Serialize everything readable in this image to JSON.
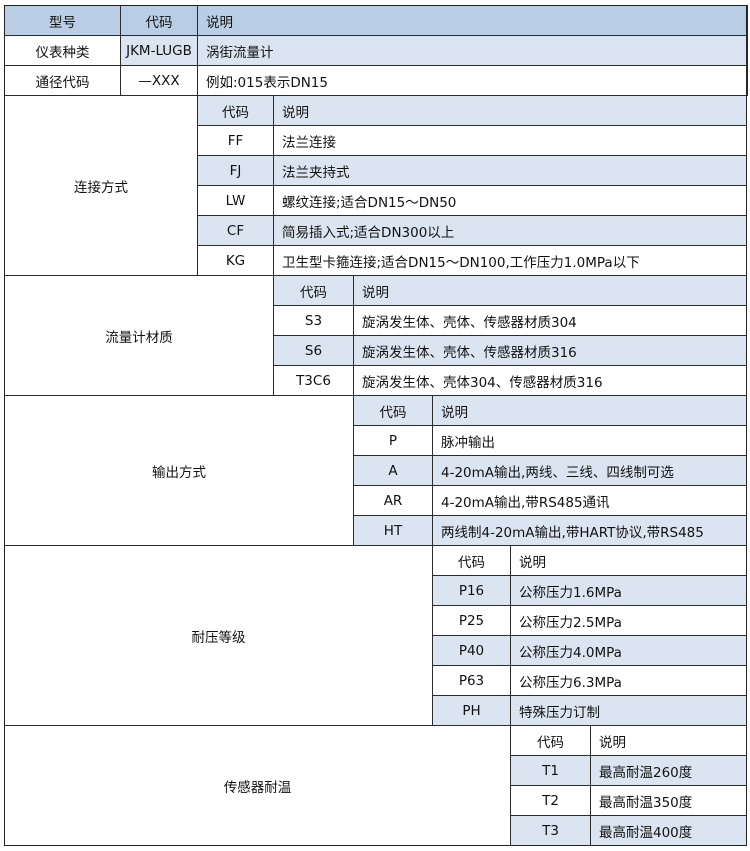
{
  "colors": {
    "header_dark": "#b9cde5",
    "row_shade": "#dbe5f1",
    "border": "#2b2b2b"
  },
  "top_table": {
    "headers": [
      "型号",
      "代码",
      "说明"
    ],
    "rows": [
      [
        "仪表种类",
        "JKM-LUGB",
        "涡街流量计"
      ],
      [
        "通径代码",
        "—XXX",
        "例如:015表示DN15"
      ]
    ]
  },
  "sections": [
    {
      "label": "连接方式",
      "header": [
        "代码",
        "说明"
      ],
      "rows": [
        [
          "FF",
          "法兰连接"
        ],
        [
          "FJ",
          "法兰夹持式"
        ],
        [
          "LW",
          "螺纹连接;适合DN15～DN50"
        ],
        [
          "CF",
          "简易插入式;适合DN300以上"
        ],
        [
          "KG",
          "卫生型卡箍连接;适合DN15～DN100,工作压力1.0MPa以下"
        ]
      ]
    },
    {
      "label": "流量计材质",
      "header": [
        "代码",
        "说明"
      ],
      "rows": [
        [
          "S3",
          "旋涡发生体、壳体、传感器材质304"
        ],
        [
          "S6",
          "旋涡发生体、壳体、传感器材质316"
        ],
        [
          "T3C6",
          "旋涡发生体、壳体304、传感器材质316"
        ]
      ]
    },
    {
      "label": "输出方式",
      "header": [
        "代码",
        "说明"
      ],
      "rows": [
        [
          "P",
          "脉冲输出"
        ],
        [
          "A",
          "4-20mA输出,两线、三线、四线制可选"
        ],
        [
          "AR",
          "4-20mA输出,带RS485通讯"
        ],
        [
          "HT",
          "两线制4-20mA输出,带HART协议,带RS485"
        ]
      ]
    },
    {
      "label": "耐压等级",
      "header": [
        "代码",
        "说明"
      ],
      "rows": [
        [
          "P16",
          "公称压力1.6MPa"
        ],
        [
          "P25",
          "公称压力2.5MPa"
        ],
        [
          "P40",
          "公称压力4.0MPa"
        ],
        [
          "P63",
          "公称压力6.3MPa"
        ],
        [
          "PH",
          "特殊压力订制"
        ]
      ]
    },
    {
      "label": "传感器耐温",
      "header": [
        "代码",
        "说明"
      ],
      "rows": [
        [
          "T1",
          "最高耐温260度"
        ],
        [
          "T2",
          "最高耐温350度"
        ],
        [
          "T3",
          "最高耐温400度"
        ]
      ]
    }
  ]
}
